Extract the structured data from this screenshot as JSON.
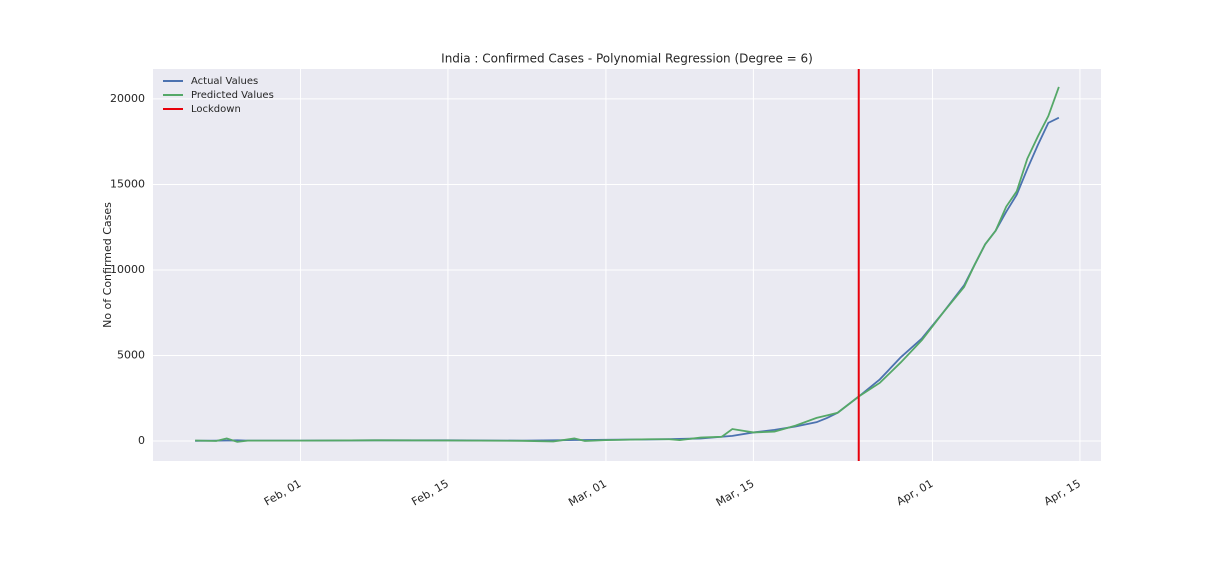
{
  "chart_data": {
    "type": "line",
    "title": "India : Confirmed Cases - Polynomial Regression (Degree = 6)",
    "ylabel": "No of Confirmed Cases",
    "x": [
      "01-22",
      "01-24",
      "01-25",
      "01-26",
      "01-27",
      "02-01",
      "02-08",
      "02-15",
      "02-22",
      "02-25",
      "02-27",
      "02-28",
      "03-01",
      "03-05",
      "03-07",
      "03-08",
      "03-10",
      "03-12",
      "03-13",
      "03-15",
      "03-17",
      "03-19",
      "03-21",
      "03-22",
      "03-23",
      "03-25",
      "03-27",
      "03-29",
      "03-31",
      "04-02",
      "04-04",
      "04-05",
      "04-06",
      "04-07",
      "04-08",
      "04-09",
      "04-10",
      "04-11",
      "04-12",
      "04-13"
    ],
    "series": [
      {
        "name": "Actual Values",
        "color": "#4c72b0",
        "values": [
          10,
          20,
          30,
          40,
          20,
          20,
          40,
          40,
          20,
          40,
          60,
          60,
          70,
          90,
          110,
          120,
          150,
          250,
          300,
          500,
          650,
          850,
          1100,
          1350,
          1650,
          2600,
          3600,
          4900,
          6000,
          7500,
          9100,
          10300,
          11500,
          12300,
          13400,
          14400,
          15900,
          17300,
          18600,
          18900
        ]
      },
      {
        "name": "Predicted Values",
        "color": "#55a868",
        "values": [
          30,
          0,
          150,
          -50,
          20,
          20,
          40,
          30,
          10,
          -30,
          150,
          0,
          50,
          100,
          100,
          50,
          200,
          250,
          700,
          500,
          550,
          900,
          1350,
          1500,
          1650,
          2600,
          3400,
          4600,
          5900,
          7500,
          9000,
          10300,
          11500,
          12300,
          13700,
          14600,
          16500,
          17800,
          19000,
          20700
        ]
      }
    ],
    "lockdown": {
      "name": "Lockdown",
      "x": "03-25",
      "color": "#e8000b"
    },
    "xlim": [
      "01-18",
      "04-17"
    ],
    "xticks": [
      {
        "value": "02-01",
        "label": "Feb, 01"
      },
      {
        "value": "02-15",
        "label": "Feb, 15"
      },
      {
        "value": "03-01",
        "label": "Mar, 01"
      },
      {
        "value": "03-15",
        "label": "Mar, 15"
      },
      {
        "value": "04-01",
        "label": "Apr, 01"
      },
      {
        "value": "04-15",
        "label": "Apr, 15"
      }
    ],
    "ylim": [
      -1170,
      21750
    ],
    "yticks": [
      0,
      5000,
      10000,
      15000,
      20000
    ],
    "grid": true,
    "legend": "upper left"
  }
}
